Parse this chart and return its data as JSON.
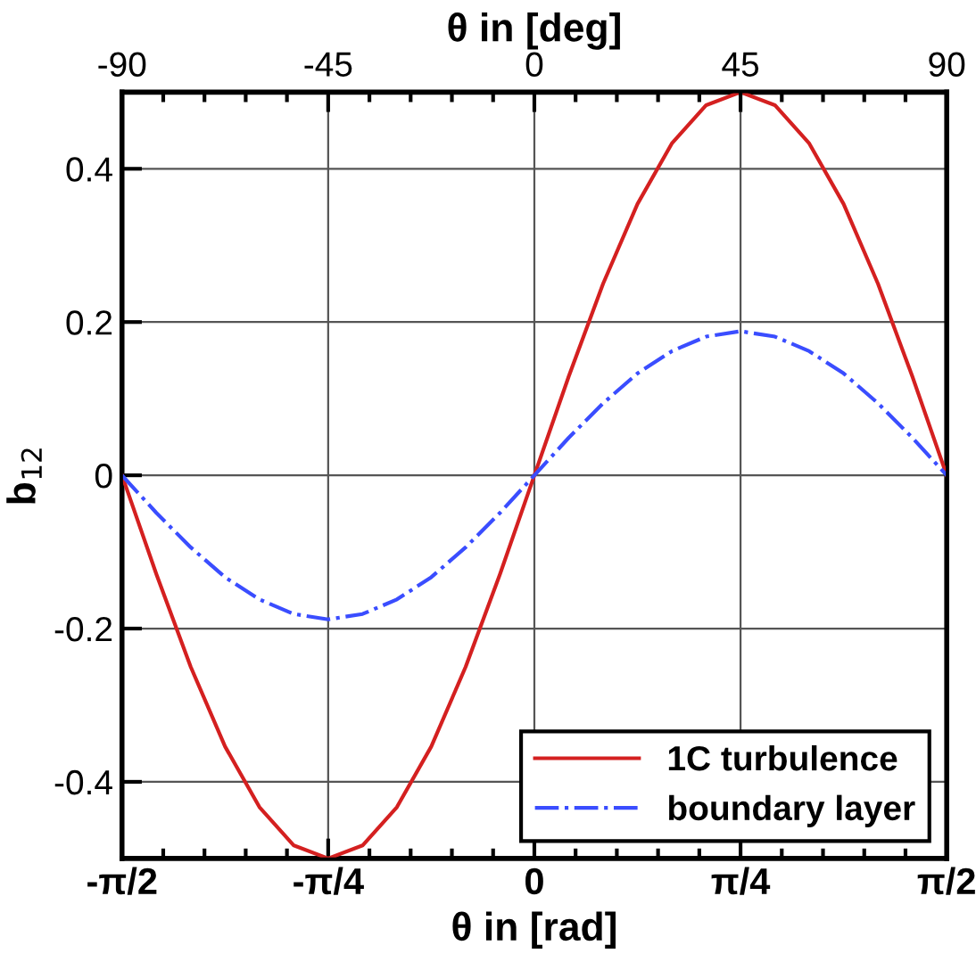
{
  "chart_data": {
    "type": "line",
    "xlabel": "θ in [rad]",
    "x2label": "θ in [deg]",
    "ylabel": "b$_{12}$",
    "x": [
      -1.5708,
      -1.4399,
      -1.309,
      -1.1781,
      -1.0472,
      -0.9163,
      -0.7854,
      -0.6545,
      -0.5236,
      -0.3927,
      -0.2618,
      -0.1309,
      0,
      0.1309,
      0.2618,
      0.3927,
      0.5236,
      0.6545,
      0.7854,
      0.9163,
      1.0472,
      1.1781,
      1.309,
      1.4399,
      1.5708
    ],
    "series": [
      {
        "name": "1C turbulence",
        "color": "#d42020",
        "line_style": "solid",
        "values": [
          0,
          -0.129,
          -0.25,
          -0.354,
          -0.433,
          -0.483,
          -0.5,
          -0.483,
          -0.433,
          -0.354,
          -0.25,
          -0.129,
          0,
          0.129,
          0.25,
          0.354,
          0.433,
          0.483,
          0.5,
          0.483,
          0.433,
          0.354,
          0.25,
          0.129,
          0
        ]
      },
      {
        "name": "boundary layer",
        "color": "#3a4dff",
        "line_style": "dashdot",
        "values": [
          0,
          -0.049,
          -0.094,
          -0.133,
          -0.162,
          -0.181,
          -0.188,
          -0.181,
          -0.162,
          -0.133,
          -0.094,
          -0.049,
          0,
          0.049,
          0.094,
          0.133,
          0.162,
          0.181,
          0.188,
          0.181,
          0.162,
          0.133,
          0.094,
          0.049,
          0
        ]
      }
    ],
    "xlim": [
      -1.5708,
      1.5708
    ],
    "xticks": [
      {
        "value": -1.5708,
        "label": "-π/2"
      },
      {
        "value": -0.7854,
        "label": "-π/4"
      },
      0,
      {
        "value": 0.7854,
        "label": "π/4"
      },
      {
        "value": 1.5708,
        "label": "π/2"
      }
    ],
    "x2lim": [
      -90,
      90
    ],
    "x2ticks": [
      -90,
      -45,
      0,
      45,
      90
    ],
    "ylim": [
      -0.5,
      0.5
    ],
    "yticks": [
      -0.4,
      -0.2,
      0,
      0.2,
      0.4
    ],
    "grid": true,
    "legend": "bottom right",
    "marker": "none"
  }
}
